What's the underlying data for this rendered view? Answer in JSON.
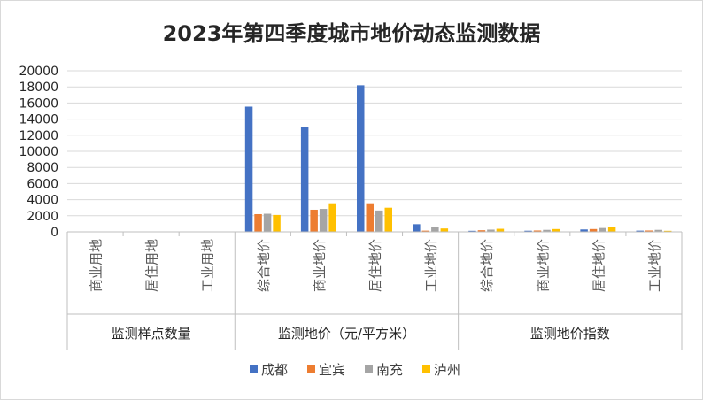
{
  "chart_data": {
    "type": "bar",
    "title": "2023年第四季度城市地价动态监测数据",
    "ylim": [
      0,
      20000
    ],
    "yticks": [
      0,
      2000,
      4000,
      6000,
      8000,
      10000,
      12000,
      14000,
      16000,
      18000,
      20000
    ],
    "grid": true,
    "legend_position": "bottom",
    "groups": [
      {
        "label": "监测样点数量",
        "categories": [
          "商业用地",
          "居住用地",
          "工业用地"
        ]
      },
      {
        "label": "监测地价（元/平方米）",
        "categories": [
          "综合地价",
          "商业地价",
          "居住地价",
          "工业地价"
        ]
      },
      {
        "label": "监测地价指数",
        "categories": [
          "综合地价",
          "商业地价",
          "居住地价",
          "工业地价"
        ]
      }
    ],
    "series": [
      {
        "name": "成都",
        "color": "#4472c4",
        "values": [
          null,
          null,
          null,
          15550,
          13000,
          18200,
          950,
          130,
          140,
          300,
          150
        ]
      },
      {
        "name": "宜宾",
        "color": "#ed7d31",
        "values": [
          null,
          null,
          null,
          2200,
          2750,
          3550,
          150,
          200,
          170,
          350,
          170
        ]
      },
      {
        "name": "南充",
        "color": "#a5a5a5",
        "values": [
          null,
          null,
          null,
          2250,
          2850,
          2650,
          550,
          280,
          250,
          480,
          250
        ]
      },
      {
        "name": "泸州",
        "color": "#ffc000",
        "values": [
          null,
          null,
          null,
          2100,
          3550,
          3000,
          420,
          380,
          350,
          650,
          130
        ]
      }
    ]
  }
}
